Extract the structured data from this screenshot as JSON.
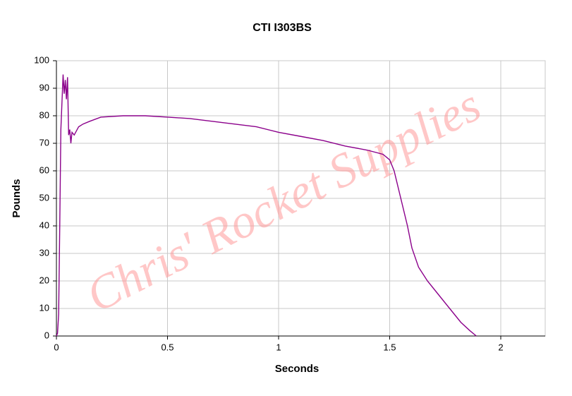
{
  "chart_data": {
    "type": "line",
    "title": "CTI I303BS",
    "xlabel": "Seconds",
    "ylabel": "Pounds",
    "watermark": "Chris' Rocket Supplies",
    "x": [
      0,
      0.005,
      0.01,
      0.015,
      0.02,
      0.025,
      0.03,
      0.035,
      0.04,
      0.045,
      0.05,
      0.055,
      0.06,
      0.065,
      0.07,
      0.08,
      0.1,
      0.12,
      0.15,
      0.2,
      0.3,
      0.4,
      0.5,
      0.6,
      0.7,
      0.8,
      0.9,
      1.0,
      1.1,
      1.2,
      1.3,
      1.4,
      1.47,
      1.5,
      1.52,
      1.55,
      1.58,
      1.6,
      1.63,
      1.67,
      1.72,
      1.77,
      1.82,
      1.86,
      1.89
    ],
    "series": [
      {
        "color": "#8b008b",
        "values": [
          0,
          1,
          8,
          40,
          75,
          85,
          95,
          88,
          93,
          86,
          94,
          73,
          75,
          70,
          74,
          73,
          76,
          77,
          78,
          79.5,
          80,
          80,
          79.5,
          79,
          78,
          77,
          76,
          74,
          72.5,
          71,
          69,
          67.5,
          66,
          64,
          60,
          50,
          40,
          32,
          25,
          20,
          15,
          10,
          5,
          2,
          0
        ]
      }
    ],
    "xlim": [
      0,
      2.2
    ],
    "xticks": [
      0,
      0.5,
      1,
      1.5,
      2
    ],
    "ylim": [
      0,
      100
    ],
    "yticks": [
      0,
      10,
      20,
      30,
      40,
      50,
      60,
      70,
      80,
      90,
      100
    ],
    "grid": true
  }
}
